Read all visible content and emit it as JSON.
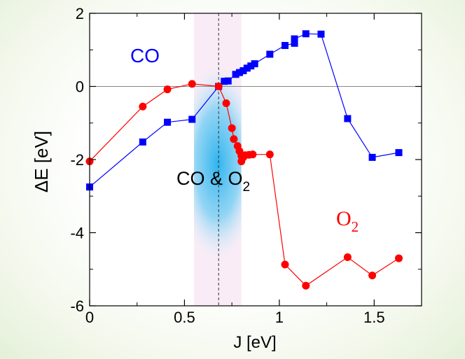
{
  "chart_data": {
    "type": "line",
    "title": "",
    "xlabel": "J [eV]",
    "ylabel": "ΔE [eV]",
    "xlim": [
      0,
      1.75
    ],
    "ylim": [
      -6,
      2
    ],
    "xticks": [
      0,
      0.5,
      1,
      1.5
    ],
    "yticks": [
      -6,
      -4,
      -2,
      0,
      2
    ],
    "xtick_labels": [
      "0",
      "0.5",
      "1",
      "1.5"
    ],
    "ytick_labels": [
      "-6",
      "-4",
      "-2",
      "0",
      "2"
    ],
    "reference_line_y": 0,
    "vertical_line_x": 0.68,
    "highlight_band_x": [
      0.55,
      0.8
    ],
    "series": [
      {
        "name": "CO",
        "color": "#0000ff",
        "marker": "square",
        "x": [
          0,
          0.28,
          0.41,
          0.54,
          0.68,
          0.71,
          0.73,
          0.77,
          0.79,
          0.81,
          0.83,
          0.85,
          0.87,
          0.95,
          1.03,
          1.08,
          1.08,
          1.14,
          1.22,
          1.36,
          1.49,
          1.63
        ],
        "y": [
          -2.75,
          -1.52,
          -0.98,
          -0.9,
          0.0,
          0.14,
          0.15,
          0.33,
          0.38,
          0.43,
          0.5,
          0.56,
          0.62,
          0.88,
          1.12,
          1.18,
          1.3,
          1.44,
          1.43,
          -0.88,
          -1.94,
          -1.81
        ]
      },
      {
        "name": "O2",
        "color": "#ff0000",
        "marker": "circle",
        "x": [
          0,
          0.28,
          0.41,
          0.54,
          0.68,
          0.72,
          0.75,
          0.76,
          0.78,
          0.79,
          0.8,
          0.8,
          0.81,
          0.82,
          0.84,
          0.86,
          0.95,
          1.03,
          1.14,
          1.36,
          1.49,
          1.63
        ],
        "y": [
          -2.05,
          -0.55,
          -0.08,
          0.07,
          0.0,
          -0.46,
          -1.14,
          -1.44,
          -1.63,
          -1.77,
          -1.9,
          -2.05,
          -1.94,
          -1.88,
          -1.87,
          -1.86,
          -1.86,
          -4.87,
          -5.45,
          -4.67,
          -5.17,
          -4.7
        ]
      }
    ],
    "annotations": [
      {
        "text": "CO",
        "color": "#0000ff"
      },
      {
        "text": "CO & O",
        "subscript": "2",
        "color": "#000000"
      },
      {
        "text": "O",
        "subscript": "2",
        "color": "#ff0000"
      }
    ]
  }
}
